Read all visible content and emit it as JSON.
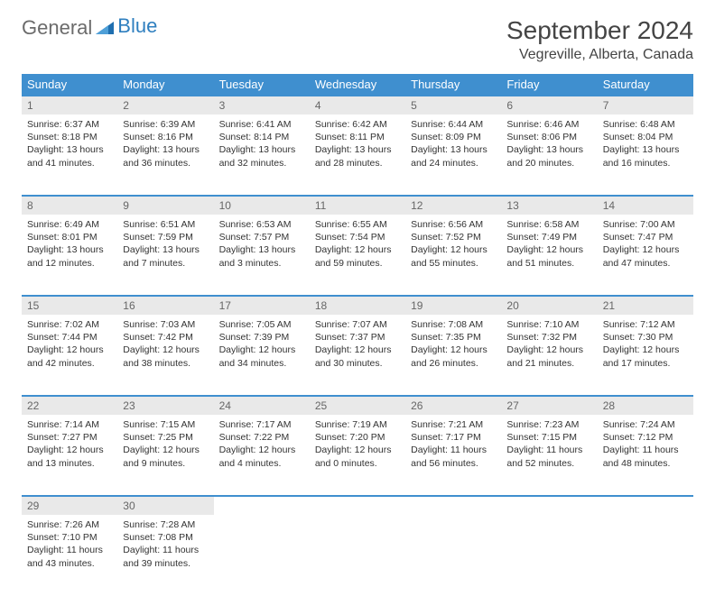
{
  "logo": {
    "text1": "General",
    "text2": "Blue"
  },
  "title": "September 2024",
  "location": "Vegreville, Alberta, Canada",
  "colors": {
    "header_bg": "#3f8fcf",
    "header_text": "#ffffff",
    "daynum_bg": "#e9e9e9",
    "border": "#3f8fcf",
    "body_text": "#333333",
    "logo_gray": "#6b6b6b",
    "logo_blue": "#2f7fbf"
  },
  "weekdays": [
    "Sunday",
    "Monday",
    "Tuesday",
    "Wednesday",
    "Thursday",
    "Friday",
    "Saturday"
  ],
  "weeks": [
    [
      {
        "n": "1",
        "sr": "6:37 AM",
        "ss": "8:18 PM",
        "dh": "13",
        "dm": "41"
      },
      {
        "n": "2",
        "sr": "6:39 AM",
        "ss": "8:16 PM",
        "dh": "13",
        "dm": "36"
      },
      {
        "n": "3",
        "sr": "6:41 AM",
        "ss": "8:14 PM",
        "dh": "13",
        "dm": "32"
      },
      {
        "n": "4",
        "sr": "6:42 AM",
        "ss": "8:11 PM",
        "dh": "13",
        "dm": "28"
      },
      {
        "n": "5",
        "sr": "6:44 AM",
        "ss": "8:09 PM",
        "dh": "13",
        "dm": "24"
      },
      {
        "n": "6",
        "sr": "6:46 AM",
        "ss": "8:06 PM",
        "dh": "13",
        "dm": "20"
      },
      {
        "n": "7",
        "sr": "6:48 AM",
        "ss": "8:04 PM",
        "dh": "13",
        "dm": "16"
      }
    ],
    [
      {
        "n": "8",
        "sr": "6:49 AM",
        "ss": "8:01 PM",
        "dh": "13",
        "dm": "12"
      },
      {
        "n": "9",
        "sr": "6:51 AM",
        "ss": "7:59 PM",
        "dh": "13",
        "dm": "7"
      },
      {
        "n": "10",
        "sr": "6:53 AM",
        "ss": "7:57 PM",
        "dh": "13",
        "dm": "3"
      },
      {
        "n": "11",
        "sr": "6:55 AM",
        "ss": "7:54 PM",
        "dh": "12",
        "dm": "59"
      },
      {
        "n": "12",
        "sr": "6:56 AM",
        "ss": "7:52 PM",
        "dh": "12",
        "dm": "55"
      },
      {
        "n": "13",
        "sr": "6:58 AM",
        "ss": "7:49 PM",
        "dh": "12",
        "dm": "51"
      },
      {
        "n": "14",
        "sr": "7:00 AM",
        "ss": "7:47 PM",
        "dh": "12",
        "dm": "47"
      }
    ],
    [
      {
        "n": "15",
        "sr": "7:02 AM",
        "ss": "7:44 PM",
        "dh": "12",
        "dm": "42"
      },
      {
        "n": "16",
        "sr": "7:03 AM",
        "ss": "7:42 PM",
        "dh": "12",
        "dm": "38"
      },
      {
        "n": "17",
        "sr": "7:05 AM",
        "ss": "7:39 PM",
        "dh": "12",
        "dm": "34"
      },
      {
        "n": "18",
        "sr": "7:07 AM",
        "ss": "7:37 PM",
        "dh": "12",
        "dm": "30"
      },
      {
        "n": "19",
        "sr": "7:08 AM",
        "ss": "7:35 PM",
        "dh": "12",
        "dm": "26"
      },
      {
        "n": "20",
        "sr": "7:10 AM",
        "ss": "7:32 PM",
        "dh": "12",
        "dm": "21"
      },
      {
        "n": "21",
        "sr": "7:12 AM",
        "ss": "7:30 PM",
        "dh": "12",
        "dm": "17"
      }
    ],
    [
      {
        "n": "22",
        "sr": "7:14 AM",
        "ss": "7:27 PM",
        "dh": "12",
        "dm": "13"
      },
      {
        "n": "23",
        "sr": "7:15 AM",
        "ss": "7:25 PM",
        "dh": "12",
        "dm": "9"
      },
      {
        "n": "24",
        "sr": "7:17 AM",
        "ss": "7:22 PM",
        "dh": "12",
        "dm": "4"
      },
      {
        "n": "25",
        "sr": "7:19 AM",
        "ss": "7:20 PM",
        "dh": "12",
        "dm": "0"
      },
      {
        "n": "26",
        "sr": "7:21 AM",
        "ss": "7:17 PM",
        "dh": "11",
        "dm": "56"
      },
      {
        "n": "27",
        "sr": "7:23 AM",
        "ss": "7:15 PM",
        "dh": "11",
        "dm": "52"
      },
      {
        "n": "28",
        "sr": "7:24 AM",
        "ss": "7:12 PM",
        "dh": "11",
        "dm": "48"
      }
    ],
    [
      {
        "n": "29",
        "sr": "7:26 AM",
        "ss": "7:10 PM",
        "dh": "11",
        "dm": "43"
      },
      {
        "n": "30",
        "sr": "7:28 AM",
        "ss": "7:08 PM",
        "dh": "11",
        "dm": "39"
      },
      null,
      null,
      null,
      null,
      null
    ]
  ]
}
